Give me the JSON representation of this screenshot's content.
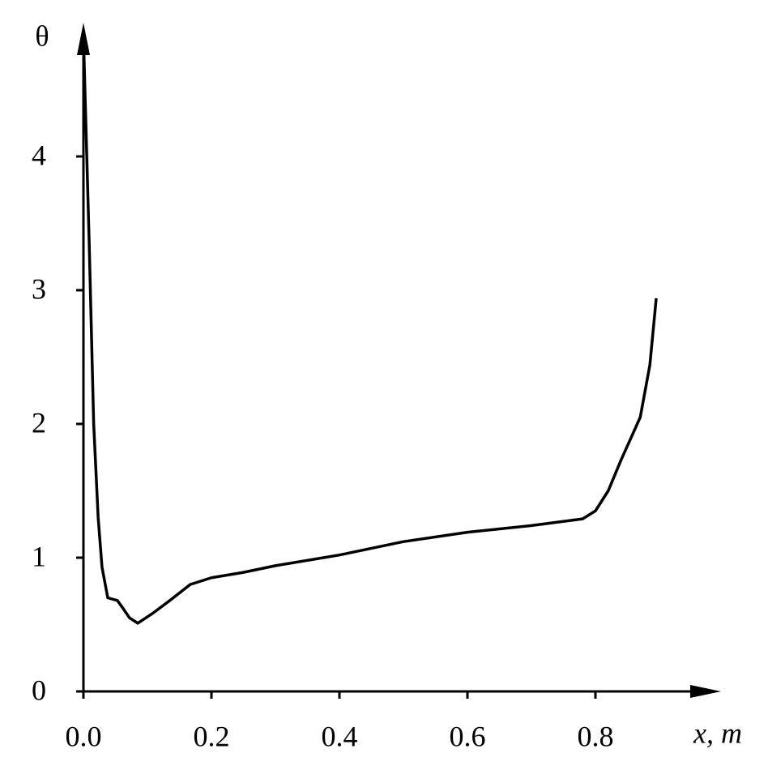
{
  "chart_data": {
    "type": "line",
    "x_label": "x, m",
    "y_label": "θ",
    "x": [
      0.0,
      0.009,
      0.016,
      0.023,
      0.029,
      0.038,
      0.053,
      0.062,
      0.072,
      0.085,
      0.11,
      0.135,
      0.167,
      0.2,
      0.25,
      0.3,
      0.4,
      0.5,
      0.6,
      0.7,
      0.78,
      0.8,
      0.82,
      0.84,
      0.87,
      0.885,
      0.895
    ],
    "series": [
      {
        "color": "#000000",
        "values": [
          4.9,
          3.35,
          2.0,
          1.3,
          0.93,
          0.7,
          0.68,
          0.62,
          0.55,
          0.51,
          0.59,
          0.68,
          0.8,
          0.85,
          0.89,
          0.94,
          1.02,
          1.12,
          1.19,
          1.24,
          1.29,
          1.35,
          1.5,
          1.73,
          2.05,
          2.44,
          2.94
        ]
      }
    ],
    "xlim": [
      0,
      1.0
    ],
    "ylim": [
      0,
      5
    ],
    "xticks": [
      {
        "value": 0,
        "label": "0.0"
      },
      0.2,
      0.4,
      0.6,
      0.8
    ],
    "yticks": [
      0,
      1,
      2,
      3,
      4
    ]
  }
}
